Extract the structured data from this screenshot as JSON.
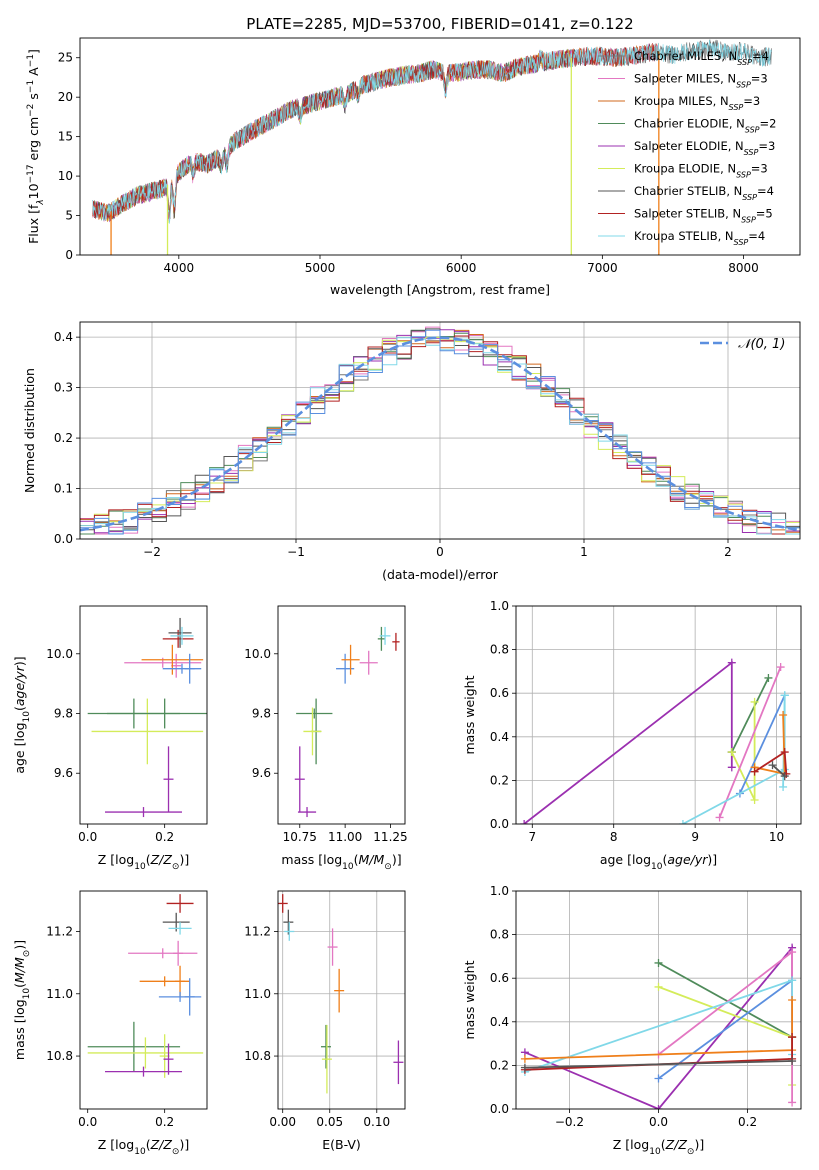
{
  "figure": {
    "title": "PLATE=2285, MJD=53700, FIBERID=0141, z=0.122"
  },
  "colors": {
    "chabrier_miles": "#777777",
    "salpeter_miles": "#e377c2",
    "kroupa_miles": "#d2691e",
    "chabrier_elodie": "#4f8b5a",
    "salpeter_elodie": "#9b30b0",
    "kroupa_elodie": "#d4ec5a",
    "chabrier_stelib": "#555555",
    "salpeter_stelib": "#b22222",
    "kroupa_stelib": "#80d8e8",
    "extra_blue": "#5b8fdf",
    "extra_orange": "#ef7f1a",
    "normal_curve": "#5b8fdf",
    "grid": "#b0b0b0"
  },
  "chart_data": [
    {
      "type": "line",
      "id": "spectrum",
      "xlabel": "wavelength [Angstrom, rest frame]",
      "ylabel": "Flux [f",
      "ylabel_sub": "λ",
      "ylabel_rest": "10",
      "ylabel_sup": "−17",
      "ylabel_tail": " erg cm",
      "ylabel_sup2": "−2",
      "ylabel_tail2": " s",
      "ylabel_sup3": "−1",
      "ylabel_tail3": " A",
      "ylabel_sup4": "−1",
      "ylabel_end": "]",
      "xlim": [
        3300,
        8400
      ],
      "ylim": [
        0,
        27.5
      ],
      "xticks": [
        4000,
        5000,
        6000,
        7000,
        8000
      ],
      "yticks": [
        0,
        5,
        10,
        15,
        20,
        25
      ],
      "grid": false,
      "legend_position": "right",
      "continuum_x": [
        3390,
        3500,
        3600,
        3700,
        3800,
        3900,
        4000,
        4100,
        4200,
        4300,
        4400,
        4500,
        4600,
        4700,
        4800,
        4900,
        5000,
        5100,
        5200,
        5300,
        5400,
        5500,
        5600,
        5700,
        5800,
        5900,
        6000,
        6100,
        6200,
        6300,
        6400,
        6500,
        6600,
        6700,
        6800,
        6900,
        7000,
        7100,
        7200,
        7300,
        7400,
        7500,
        7600,
        7700,
        7800,
        7900,
        8000,
        8100,
        8200
      ],
      "continuum_y": [
        5.8,
        5.3,
        6.5,
        7.5,
        8.0,
        8.5,
        10.5,
        12.0,
        11.5,
        12.5,
        14.5,
        15.5,
        16.5,
        17.5,
        18.5,
        19.0,
        19.5,
        20.0,
        20.5,
        21.5,
        22.0,
        22.5,
        22.8,
        23.0,
        23.5,
        23.0,
        23.2,
        23.5,
        23.5,
        23.0,
        23.8,
        24.2,
        24.5,
        24.8,
        25.0,
        25.2,
        25.2,
        25.0,
        25.2,
        25.5,
        25.8,
        25.3,
        25.8,
        26.0,
        26.2,
        25.5,
        26.0,
        25.0,
        25.2
      ],
      "series_labels": [
        {
          "name": "Chabrier MILES",
          "nssp": "4",
          "color_key": "chabrier_miles",
          "xmax": 8200
        },
        {
          "name": "Salpeter MILES",
          "nssp": "3",
          "color_key": "salpeter_miles",
          "xmax": 7400
        },
        {
          "name": "Kroupa MILES",
          "nssp": "3",
          "color_key": "kroupa_miles",
          "xmax": 7400
        },
        {
          "name": "Chabrier ELODIE",
          "nssp": "2",
          "color_key": "chabrier_elodie",
          "xmax": 6780
        },
        {
          "name": "Salpeter ELODIE",
          "nssp": "3",
          "color_key": "salpeter_elodie",
          "xmax": 6780
        },
        {
          "name": "Kroupa ELODIE",
          "nssp": "3",
          "color_key": "kroupa_elodie",
          "xmax": 6780
        },
        {
          "name": "Chabrier STELIB",
          "nssp": "4",
          "color_key": "chabrier_stelib",
          "xmax": 8200
        },
        {
          "name": "Salpeter STELIB",
          "nssp": "5",
          "color_key": "salpeter_stelib",
          "xmax": 7400
        },
        {
          "name": "Kroupa STELIB",
          "nssp": "4",
          "color_key": "kroupa_stelib",
          "xmax": 8200
        }
      ],
      "legend_nssp_prefix": "N",
      "legend_nssp_sub": "SSP",
      "drops_x": [
        3520,
        3920,
        6780,
        7400
      ]
    },
    {
      "type": "line",
      "id": "residuals",
      "xlabel": "(data-model)/error",
      "ylabel": "Normed distribution",
      "xlim": [
        -2.5,
        2.5
      ],
      "ylim": [
        0,
        0.43
      ],
      "xticks": [
        -2,
        -1,
        0,
        1,
        2
      ],
      "xtick_labels": [
        "−2",
        "−1",
        "0",
        "1",
        "2"
      ],
      "yticks": [
        0.0,
        0.1,
        0.2,
        0.3,
        0.4
      ],
      "ytick_labels": [
        "0.0",
        "0.1",
        "0.2",
        "0.3",
        "0.4"
      ],
      "grid": true,
      "legend": "𝒩(0, 1)",
      "legend_position": "top-right",
      "bins": 50
    },
    {
      "type": "scatter",
      "id": "age_vs_Z",
      "xlabel": "Z [log10(Z/Z⊙)]",
      "ylabel": "age  [log10(age/yr)]",
      "xlim": [
        -0.02,
        0.31
      ],
      "ylim": [
        9.43,
        10.16
      ],
      "xticks": [
        0.0,
        0.2
      ],
      "xtick_labels": [
        "0.0",
        "0.2"
      ],
      "yticks": [
        9.6,
        9.8,
        10.0
      ],
      "ytick_labels": [
        "9.6",
        "9.8",
        "10.0"
      ],
      "grid": false,
      "points": [
        {
          "x": 0.12,
          "xerr": 0.12,
          "y": 9.8,
          "yerr": 0.05,
          "color_key": "chabrier_elodie"
        },
        {
          "x": 0.155,
          "xerr": 0.145,
          "y": 9.74,
          "yerr": 0.11,
          "color_key": "kroupa_elodie"
        },
        {
          "x": 0.2,
          "xerr": 0.15,
          "y": 9.8,
          "yerr": 0.05,
          "color_key": "chabrier_elodie"
        },
        {
          "x": 0.21,
          "xerr": 0.0,
          "y": 9.58,
          "yerr": 0.11,
          "color_key": "salpeter_elodie"
        },
        {
          "x": 0.145,
          "xerr": 0.1,
          "y": 9.47,
          "yerr": 0.0,
          "color_key": "salpeter_elodie"
        },
        {
          "x": 0.195,
          "xerr": 0.1,
          "y": 9.97,
          "yerr": 0.0,
          "color_key": "salpeter_miles"
        },
        {
          "x": 0.23,
          "xerr": 0.0,
          "y": 9.96,
          "yerr": 0.04,
          "color_key": "salpeter_miles"
        },
        {
          "x": 0.22,
          "xerr": 0.08,
          "y": 9.98,
          "yerr": 0.05,
          "color_key": "extra_orange"
        },
        {
          "x": 0.245,
          "xerr": 0.05,
          "y": 9.95,
          "yerr": 0.0,
          "color_key": "extra_blue"
        },
        {
          "x": 0.265,
          "xerr": 0.0,
          "y": 9.95,
          "yerr": 0.05,
          "color_key": "extra_blue"
        },
        {
          "x": 0.235,
          "xerr": 0.04,
          "y": 10.05,
          "yerr": 0.03,
          "color_key": "salpeter_stelib"
        },
        {
          "x": 0.24,
          "xerr": 0.03,
          "y": 10.07,
          "yerr": 0.05,
          "color_key": "chabrier_stelib"
        },
        {
          "x": 0.245,
          "xerr": 0.03,
          "y": 10.06,
          "yerr": 0.03,
          "color_key": "kroupa_stelib"
        }
      ]
    },
    {
      "type": "scatter",
      "id": "age_vs_mass",
      "xlabel": "mass [log10(M/M⊙)]",
      "ylabel": "",
      "xlim": [
        10.63,
        11.33
      ],
      "ylim": [
        9.43,
        10.16
      ],
      "xticks": [
        10.75,
        11.0,
        11.25
      ],
      "xtick_labels": [
        "10.75",
        "11.00",
        "11.25"
      ],
      "yticks": [
        9.6,
        9.8,
        10.0
      ],
      "ytick_labels": [
        "9.6",
        "9.8",
        "10.0"
      ],
      "grid": false,
      "points": [
        {
          "x": 10.83,
          "xerr": 0.1,
          "y": 9.8,
          "yerr": 0.0,
          "color_key": "chabrier_elodie"
        },
        {
          "x": 10.84,
          "xerr": 0.0,
          "y": 9.74,
          "yerr": 0.11,
          "color_key": "chabrier_elodie"
        },
        {
          "x": 10.82,
          "xerr": 0.05,
          "y": 9.74,
          "yerr": 0.08,
          "color_key": "kroupa_elodie"
        },
        {
          "x": 10.75,
          "xerr": 0.0,
          "y": 9.58,
          "yerr": 0.11,
          "color_key": "salpeter_elodie"
        },
        {
          "x": 10.79,
          "xerr": 0.05,
          "y": 9.47,
          "yerr": 0.0,
          "color_key": "salpeter_elodie"
        },
        {
          "x": 11.0,
          "xerr": 0.05,
          "y": 9.95,
          "yerr": 0.05,
          "color_key": "extra_blue"
        },
        {
          "x": 11.03,
          "xerr": 0.05,
          "y": 9.98,
          "yerr": 0.05,
          "color_key": "extra_orange"
        },
        {
          "x": 11.13,
          "xerr": 0.05,
          "y": 9.97,
          "yerr": 0.04,
          "color_key": "salpeter_miles"
        },
        {
          "x": 11.2,
          "xerr": 0.02,
          "y": 10.05,
          "yerr": 0.04,
          "color_key": "chabrier_elodie"
        },
        {
          "x": 11.22,
          "xerr": 0.03,
          "y": 10.06,
          "yerr": 0.03,
          "color_key": "kroupa_stelib"
        },
        {
          "x": 11.28,
          "xerr": 0.02,
          "y": 10.04,
          "yerr": 0.03,
          "color_key": "salpeter_stelib"
        }
      ]
    },
    {
      "type": "line",
      "id": "weight_vs_age",
      "xlabel": "age  [log10(age/yr)]",
      "ylabel": "mass weight",
      "xlim": [
        6.8,
        10.3
      ],
      "ylim": [
        0.0,
        1.0
      ],
      "xticks": [
        7,
        8,
        9,
        10
      ],
      "xtick_labels": [
        "7",
        "8",
        "9",
        "10"
      ],
      "yticks": [
        0.0,
        0.2,
        0.4,
        0.6,
        0.8,
        1.0
      ],
      "ytick_labels": [
        "0.0",
        "0.2",
        "0.4",
        "0.6",
        "0.8",
        "1.0"
      ],
      "grid": true,
      "series": [
        {
          "color_key": "salpeter_elodie",
          "x": [
            6.9,
            9.45,
            9.45,
            9.45
          ],
          "y": [
            0.0,
            0.74,
            0.33,
            0.26
          ]
        },
        {
          "color_key": "chabrier_elodie",
          "x": [
            9.45,
            9.9
          ],
          "y": [
            0.33,
            0.67
          ]
        },
        {
          "color_key": "kroupa_elodie",
          "x": [
            9.45,
            9.73,
            9.73
          ],
          "y": [
            0.33,
            0.11,
            0.56
          ]
        },
        {
          "color_key": "salpeter_miles",
          "x": [
            9.3,
            10.05
          ],
          "y": [
            0.03,
            0.72
          ]
        },
        {
          "color_key": "extra_blue",
          "x": [
            9.55,
            10.1
          ],
          "y": [
            0.14,
            0.59
          ]
        },
        {
          "color_key": "kroupa_stelib",
          "x": [
            8.85,
            10.1,
            10.1
          ],
          "y": [
            0.0,
            0.25,
            0.59
          ]
        },
        {
          "color_key": "kroupa_stelib",
          "x": [
            10.08,
            10.1
          ],
          "y": [
            0.17,
            0.59
          ]
        },
        {
          "color_key": "extra_orange",
          "x": [
            9.73,
            10.1,
            10.08
          ],
          "y": [
            0.26,
            0.23,
            0.5
          ]
        },
        {
          "color_key": "salpeter_stelib",
          "x": [
            9.73,
            10.1,
            10.12
          ],
          "y": [
            0.24,
            0.33,
            0.23
          ]
        },
        {
          "color_key": "chabrier_stelib",
          "x": [
            9.95,
            10.1
          ],
          "y": [
            0.27,
            0.22
          ]
        }
      ]
    },
    {
      "type": "scatter",
      "id": "mass_vs_Z",
      "xlabel": "Z [log10(Z/Z⊙)]",
      "ylabel": "mass [log10(M/M⊙)]",
      "xlim": [
        -0.02,
        0.31
      ],
      "ylim": [
        10.63,
        11.33
      ],
      "xticks": [
        0.0,
        0.2
      ],
      "xtick_labels": [
        "0.0",
        "0.2"
      ],
      "yticks": [
        10.8,
        11.0,
        11.2
      ],
      "ytick_labels": [
        "10.8",
        "11.0",
        "11.2"
      ],
      "grid": false,
      "points": [
        {
          "x": 0.12,
          "xerr": 0.12,
          "y": 10.83,
          "yerr": 0.08,
          "color_key": "chabrier_elodie"
        },
        {
          "x": 0.15,
          "xerr": 0.15,
          "y": 10.81,
          "yerr": 0.05,
          "color_key": "kroupa_elodie"
        },
        {
          "x": 0.2,
          "xerr": 0.0,
          "y": 10.8,
          "yerr": 0.07,
          "color_key": "kroupa_elodie"
        },
        {
          "x": 0.145,
          "xerr": 0.1,
          "y": 10.75,
          "yerr": 0.0,
          "color_key": "salpeter_elodie"
        },
        {
          "x": 0.21,
          "xerr": 0.0,
          "y": 10.79,
          "yerr": 0.05,
          "color_key": "salpeter_elodie"
        },
        {
          "x": 0.195,
          "xerr": 0.09,
          "y": 11.13,
          "yerr": 0.0,
          "color_key": "salpeter_miles"
        },
        {
          "x": 0.235,
          "xerr": 0.0,
          "y": 11.13,
          "yerr": 0.04,
          "color_key": "salpeter_miles"
        },
        {
          "x": 0.2,
          "xerr": 0.065,
          "y": 11.04,
          "yerr": 0.0,
          "color_key": "extra_orange"
        },
        {
          "x": 0.24,
          "xerr": 0.0,
          "y": 11.04,
          "yerr": 0.05,
          "color_key": "extra_orange"
        },
        {
          "x": 0.24,
          "xerr": 0.055,
          "y": 10.99,
          "yerr": 0.0,
          "color_key": "extra_blue"
        },
        {
          "x": 0.265,
          "xerr": 0.0,
          "y": 10.99,
          "yerr": 0.06,
          "color_key": "extra_blue"
        },
        {
          "x": 0.24,
          "xerr": 0.035,
          "y": 11.29,
          "yerr": 0.03,
          "color_key": "salpeter_stelib"
        },
        {
          "x": 0.23,
          "xerr": 0.035,
          "y": 11.23,
          "yerr": 0.03,
          "color_key": "chabrier_stelib"
        },
        {
          "x": 0.24,
          "xerr": 0.03,
          "y": 11.21,
          "yerr": 0.02,
          "color_key": "kroupa_stelib"
        }
      ]
    },
    {
      "type": "scatter",
      "id": "mass_vs_ebv",
      "xlabel": "E(B-V)",
      "ylabel": "",
      "xlim": [
        -0.005,
        0.13
      ],
      "ylim": [
        10.63,
        11.33
      ],
      "xticks": [
        0.0,
        0.05,
        0.1
      ],
      "xtick_labels": [
        "0.00",
        "0.05",
        "0.10"
      ],
      "yticks": [
        10.8,
        11.0,
        11.2
      ],
      "ytick_labels": [
        "10.8",
        "11.0",
        "11.2"
      ],
      "grid": true,
      "points": [
        {
          "x": 0.0,
          "xerr": 0.0,
          "y": 11.29,
          "yerr": 0.03,
          "color_key": "salpeter_stelib"
        },
        {
          "x": 0.006,
          "xerr": 0.0,
          "y": 11.23,
          "yerr": 0.04,
          "color_key": "chabrier_stelib"
        },
        {
          "x": 0.007,
          "xerr": 0.0,
          "y": 11.2,
          "yerr": 0.03,
          "color_key": "kroupa_stelib"
        },
        {
          "x": 0.053,
          "xerr": 0.0,
          "y": 11.15,
          "yerr": 0.06,
          "color_key": "salpeter_miles"
        },
        {
          "x": 0.06,
          "xerr": 0.0,
          "y": 11.01,
          "yerr": 0.07,
          "color_key": "extra_orange"
        },
        {
          "x": 0.046,
          "xerr": 0.0,
          "y": 10.83,
          "yerr": 0.07,
          "color_key": "chabrier_elodie"
        },
        {
          "x": 0.047,
          "xerr": 0.0,
          "y": 10.79,
          "yerr": 0.11,
          "color_key": "kroupa_elodie"
        },
        {
          "x": 0.123,
          "xerr": 0.0,
          "y": 10.78,
          "yerr": 0.07,
          "color_key": "salpeter_elodie"
        }
      ]
    },
    {
      "type": "line",
      "id": "weight_vs_Z",
      "xlabel": "Z [log10(Z/Z⊙)]",
      "ylabel": "mass weight",
      "xlim": [
        -0.32,
        0.32
      ],
      "ylim": [
        0.0,
        1.0
      ],
      "xticks": [
        -0.2,
        0.0,
        0.2
      ],
      "xtick_labels": [
        "−0.2",
        "0.0",
        "0.2"
      ],
      "yticks": [
        0.0,
        0.2,
        0.4,
        0.6,
        0.8,
        1.0
      ],
      "ytick_labels": [
        "0.0",
        "0.2",
        "0.4",
        "0.6",
        "0.8",
        "1.0"
      ],
      "grid": true,
      "series": [
        {
          "color_key": "salpeter_elodie",
          "x": [
            -0.3,
            0.0,
            0.3,
            0.3
          ],
          "y": [
            0.26,
            0.0,
            0.74,
            0.33
          ]
        },
        {
          "color_key": "chabrier_elodie",
          "x": [
            0.0,
            0.3
          ],
          "y": [
            0.67,
            0.33
          ]
        },
        {
          "color_key": "kroupa_elodie",
          "x": [
            0.0,
            0.3,
            0.3
          ],
          "y": [
            0.56,
            0.33,
            0.11
          ]
        },
        {
          "color_key": "salpeter_miles",
          "x": [
            0.0,
            0.3,
            0.3
          ],
          "y": [
            0.25,
            0.72,
            0.03
          ]
        },
        {
          "color_key": "extra_blue",
          "x": [
            0.0,
            0.3
          ],
          "y": [
            0.14,
            0.59
          ]
        },
        {
          "color_key": "kroupa_stelib",
          "x": [
            -0.3,
            0.3,
            0.3
          ],
          "y": [
            0.17,
            0.59,
            0.25
          ]
        },
        {
          "color_key": "extra_orange",
          "x": [
            -0.3,
            0.3,
            0.3
          ],
          "y": [
            0.23,
            0.27,
            0.5
          ]
        },
        {
          "color_key": "salpeter_stelib",
          "x": [
            -0.3,
            0.3,
            0.3
          ],
          "y": [
            0.18,
            0.23,
            0.33
          ]
        },
        {
          "color_key": "chabrier_stelib",
          "x": [
            -0.3,
            0.3
          ],
          "y": [
            0.19,
            0.22
          ]
        }
      ]
    }
  ]
}
